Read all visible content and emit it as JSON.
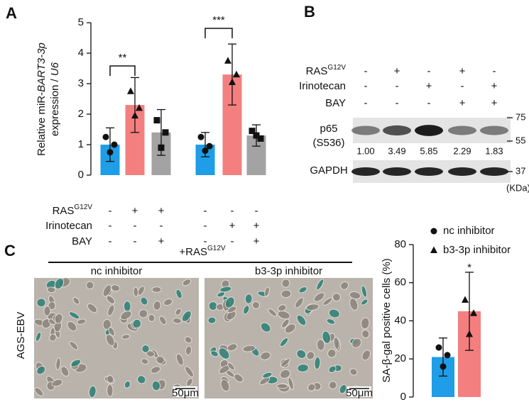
{
  "panels": [
    "A",
    "B",
    "C"
  ],
  "chart_data": [
    {
      "type": "bar",
      "ylabel": [
        [
          "Relative miR-",
          "BART3-3p"
        ],
        [
          "expression / ",
          "U6"
        ]
      ],
      "values": [
        1.0,
        2.3,
        1.4,
        1.0,
        3.3,
        1.3
      ],
      "errors": [
        0.55,
        0.9,
        0.75,
        0.4,
        1.0,
        0.35
      ],
      "points": [
        [
          1.25,
          1.0,
          0.75
        ],
        [
          2.75,
          2.2,
          1.95
        ],
        [
          1.8,
          1.4,
          0.9
        ],
        [
          1.25,
          0.95,
          0.8
        ],
        [
          3.75,
          3.3,
          3.05
        ],
        [
          1.45,
          1.2,
          1.3
        ]
      ],
      "markers": [
        "circle",
        "triangle",
        "square",
        "circle",
        "triangle",
        "square"
      ],
      "colors": [
        "#1f9de6",
        "#f47f7f",
        "#a3a3a3",
        "#1f9de6",
        "#f47f7f",
        "#a3a3a3"
      ],
      "ylim": [
        0,
        5
      ],
      "yticks": [
        0,
        1,
        2,
        3,
        4,
        5
      ],
      "treatments": [
        {
          "name": "RAS",
          "sup": "G12V",
          "signs": [
            "-",
            "+",
            "+",
            "-",
            "-",
            "-"
          ]
        },
        {
          "name": "Irinotecan",
          "signs": [
            "-",
            "-",
            "-",
            "-",
            "+",
            "+"
          ]
        },
        {
          "name": "BAY",
          "signs": [
            "-",
            "-",
            "+",
            "-",
            "-",
            "+"
          ]
        }
      ],
      "annotations": [
        "**",
        "***"
      ]
    },
    {
      "type": "bar",
      "ylabel": "SA-β-gal positive cells (%)",
      "series": [
        {
          "name": "nc inhibitor",
          "color": "#1f9de6",
          "marker": "circle",
          "value": 21,
          "error": 10,
          "points": [
            26,
            22,
            16
          ]
        },
        {
          "name": "b3-3p inhibitor",
          "color": "#f47f7f",
          "marker": "triangle",
          "value": 45,
          "error": 20.5,
          "points": [
            51,
            44,
            33
          ]
        }
      ],
      "ylim": [
        0,
        80
      ],
      "yticks": [
        0,
        20,
        40,
        60,
        80
      ],
      "annotations": [
        "*"
      ]
    }
  ],
  "blot": {
    "rows": [
      {
        "name": "RAS",
        "sup": "G12V",
        "signs": [
          "-",
          "+",
          "-",
          "+",
          "-"
        ]
      },
      {
        "name": "Irinotecan",
        "signs": [
          "-",
          "-",
          "+",
          "-",
          "+"
        ]
      },
      {
        "name": "BAY",
        "signs": [
          "-",
          "-",
          "-",
          "+",
          "+"
        ]
      }
    ],
    "target": [
      "p65",
      "(S536)"
    ],
    "quantification": [
      "1.00",
      "3.49",
      "5.85",
      "2.29",
      "1.83"
    ],
    "loading": "GAPDH",
    "mw": [
      "75",
      "55",
      "37"
    ],
    "mw_unit": "(KDa)"
  },
  "micrographs": {
    "header": {
      "name": "+RAS",
      "sup": "G12V"
    },
    "panels": [
      "nc inhibitor",
      "b3-3p inhibitor"
    ],
    "cell_line": "AGS-EBV",
    "scale_bar": "50μm"
  }
}
